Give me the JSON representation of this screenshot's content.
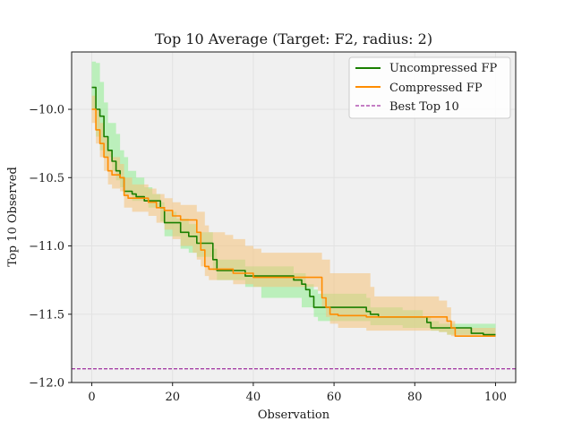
{
  "chart_data": {
    "type": "line",
    "title": "Top 10 Average (Target: F2, radius: 2)",
    "xlabel": "Observation",
    "ylabel": "Top 10 Observed",
    "xlim": [
      -5,
      105
    ],
    "ylim": [
      -12.0,
      -9.58
    ],
    "xticks": [
      0,
      20,
      40,
      60,
      80,
      100
    ],
    "yticks": [
      -12.0,
      -11.5,
      -11.0,
      -10.5,
      -10.0
    ],
    "xtick_labels": [
      "0",
      "20",
      "40",
      "60",
      "80",
      "100"
    ],
    "ytick_labels": [
      "−12.0",
      "−11.5",
      "−11.0",
      "−10.5",
      "−10.0"
    ],
    "grid": true,
    "legend_position": "top-right",
    "background": "#f0f0f0",
    "series": [
      {
        "name": "Uncompressed FP",
        "color": "#1a7f00",
        "band_color": "#90ee90",
        "mean": [
          [
            0,
            -9.84
          ],
          [
            1,
            -10.0
          ],
          [
            2,
            -10.05
          ],
          [
            3,
            -10.2
          ],
          [
            4,
            -10.3
          ],
          [
            5,
            -10.38
          ],
          [
            6,
            -10.45
          ],
          [
            7,
            -10.5
          ],
          [
            8,
            -10.6
          ],
          [
            10,
            -10.62
          ],
          [
            11,
            -10.64
          ],
          [
            13,
            -10.67
          ],
          [
            17,
            -10.72
          ],
          [
            18,
            -10.83
          ],
          [
            22,
            -10.9
          ],
          [
            24,
            -10.93
          ],
          [
            26,
            -10.98
          ],
          [
            30,
            -11.1
          ],
          [
            31,
            -11.18
          ],
          [
            38,
            -11.22
          ],
          [
            50,
            -11.25
          ],
          [
            52,
            -11.28
          ],
          [
            53,
            -11.32
          ],
          [
            54,
            -11.37
          ],
          [
            55,
            -11.45
          ],
          [
            68,
            -11.48
          ],
          [
            69,
            -11.5
          ],
          [
            71,
            -11.52
          ],
          [
            83,
            -11.56
          ],
          [
            84,
            -11.6
          ],
          [
            94,
            -11.64
          ],
          [
            97,
            -11.65
          ],
          [
            100,
            -11.65
          ]
        ],
        "upper": [
          [
            0,
            -9.65
          ],
          [
            1,
            -9.66
          ],
          [
            2,
            -9.8
          ],
          [
            3,
            -9.95
          ],
          [
            4,
            -10.1
          ],
          [
            6,
            -10.18
          ],
          [
            7,
            -10.3
          ],
          [
            8,
            -10.35
          ],
          [
            9,
            -10.45
          ],
          [
            11,
            -10.5
          ],
          [
            13,
            -10.57
          ],
          [
            15,
            -10.62
          ],
          [
            17,
            -10.68
          ],
          [
            18,
            -10.75
          ],
          [
            21,
            -10.8
          ],
          [
            24,
            -10.84
          ],
          [
            26,
            -10.9
          ],
          [
            30,
            -11.02
          ],
          [
            31,
            -11.1
          ],
          [
            38,
            -11.15
          ],
          [
            50,
            -11.2
          ],
          [
            53,
            -11.28
          ],
          [
            55,
            -11.32
          ],
          [
            56,
            -11.35
          ],
          [
            68,
            -11.38
          ],
          [
            69,
            -11.45
          ],
          [
            77,
            -11.47
          ],
          [
            82,
            -11.52
          ],
          [
            84,
            -11.55
          ],
          [
            86,
            -11.57
          ],
          [
            100,
            -11.57
          ]
        ],
        "lower": [
          [
            0,
            -10.0
          ],
          [
            1,
            -10.2
          ],
          [
            2,
            -10.3
          ],
          [
            3,
            -10.35
          ],
          [
            5,
            -10.45
          ],
          [
            6,
            -10.52
          ],
          [
            7,
            -10.57
          ],
          [
            8,
            -10.62
          ],
          [
            10,
            -10.67
          ],
          [
            14,
            -10.72
          ],
          [
            17,
            -10.82
          ],
          [
            18,
            -10.93
          ],
          [
            22,
            -11.02
          ],
          [
            24,
            -11.05
          ],
          [
            26,
            -11.08
          ],
          [
            30,
            -11.18
          ],
          [
            31,
            -11.25
          ],
          [
            38,
            -11.3
          ],
          [
            42,
            -11.38
          ],
          [
            52,
            -11.45
          ],
          [
            55,
            -11.52
          ],
          [
            56,
            -11.55
          ],
          [
            69,
            -11.58
          ],
          [
            77,
            -11.6
          ],
          [
            84,
            -11.62
          ],
          [
            86,
            -11.63
          ],
          [
            88,
            -11.65
          ],
          [
            100,
            -11.65
          ]
        ]
      },
      {
        "name": "Compressed FP",
        "color": "#ff8c00",
        "band_color": "#f5c27a",
        "mean": [
          [
            0,
            -10.0
          ],
          [
            1,
            -10.15
          ],
          [
            2,
            -10.25
          ],
          [
            3,
            -10.35
          ],
          [
            4,
            -10.45
          ],
          [
            5,
            -10.48
          ],
          [
            7,
            -10.5
          ],
          [
            8,
            -10.63
          ],
          [
            9,
            -10.65
          ],
          [
            13,
            -10.65
          ],
          [
            14,
            -10.68
          ],
          [
            16,
            -10.72
          ],
          [
            18,
            -10.74
          ],
          [
            20,
            -10.78
          ],
          [
            22,
            -10.81
          ],
          [
            25,
            -10.81
          ],
          [
            26,
            -10.9
          ],
          [
            27,
            -11.03
          ],
          [
            28,
            -11.15
          ],
          [
            29,
            -11.17
          ],
          [
            34,
            -11.17
          ],
          [
            35,
            -11.2
          ],
          [
            39,
            -11.2
          ],
          [
            40,
            -11.23
          ],
          [
            56,
            -11.23
          ],
          [
            57,
            -11.38
          ],
          [
            58,
            -11.45
          ],
          [
            59,
            -11.5
          ],
          [
            61,
            -11.51
          ],
          [
            68,
            -11.52
          ],
          [
            86,
            -11.52
          ],
          [
            88,
            -11.55
          ],
          [
            89,
            -11.6
          ],
          [
            90,
            -11.66
          ],
          [
            100,
            -11.66
          ]
        ],
        "upper": [
          [
            0,
            -9.9
          ],
          [
            1,
            -10.0
          ],
          [
            2,
            -10.1
          ],
          [
            3,
            -10.2
          ],
          [
            4,
            -10.3
          ],
          [
            5,
            -10.35
          ],
          [
            7,
            -10.4
          ],
          [
            8,
            -10.5
          ],
          [
            10,
            -10.55
          ],
          [
            14,
            -10.58
          ],
          [
            16,
            -10.62
          ],
          [
            18,
            -10.65
          ],
          [
            20,
            -10.68
          ],
          [
            22,
            -10.7
          ],
          [
            25,
            -10.7
          ],
          [
            26,
            -10.75
          ],
          [
            28,
            -10.85
          ],
          [
            29,
            -10.9
          ],
          [
            33,
            -10.92
          ],
          [
            35,
            -10.95
          ],
          [
            38,
            -11.0
          ],
          [
            40,
            -11.02
          ],
          [
            42,
            -11.05
          ],
          [
            56,
            -11.05
          ],
          [
            57,
            -11.1
          ],
          [
            59,
            -11.2
          ],
          [
            68,
            -11.2
          ],
          [
            69,
            -11.3
          ],
          [
            70,
            -11.37
          ],
          [
            85,
            -11.37
          ],
          [
            86,
            -11.4
          ],
          [
            88,
            -11.45
          ],
          [
            89,
            -11.55
          ],
          [
            90,
            -11.6
          ],
          [
            100,
            -11.6
          ]
        ],
        "lower": [
          [
            0,
            -10.1
          ],
          [
            1,
            -10.25
          ],
          [
            2,
            -10.35
          ],
          [
            3,
            -10.45
          ],
          [
            4,
            -10.55
          ],
          [
            5,
            -10.58
          ],
          [
            7,
            -10.6
          ],
          [
            8,
            -10.72
          ],
          [
            10,
            -10.75
          ],
          [
            14,
            -10.78
          ],
          [
            16,
            -10.83
          ],
          [
            18,
            -10.88
          ],
          [
            20,
            -10.95
          ],
          [
            22,
            -11.0
          ],
          [
            25,
            -11.05
          ],
          [
            26,
            -11.1
          ],
          [
            27,
            -11.15
          ],
          [
            28,
            -11.22
          ],
          [
            29,
            -11.25
          ],
          [
            34,
            -11.25
          ],
          [
            35,
            -11.28
          ],
          [
            40,
            -11.3
          ],
          [
            56,
            -11.33
          ],
          [
            57,
            -11.45
          ],
          [
            58,
            -11.52
          ],
          [
            59,
            -11.57
          ],
          [
            61,
            -11.6
          ],
          [
            68,
            -11.62
          ],
          [
            86,
            -11.63
          ],
          [
            88,
            -11.65
          ],
          [
            89,
            -11.66
          ],
          [
            100,
            -11.66
          ]
        ]
      },
      {
        "name": "Best Top 10",
        "color": "#8b008b",
        "style": "dashed",
        "y": -11.9
      }
    ]
  }
}
